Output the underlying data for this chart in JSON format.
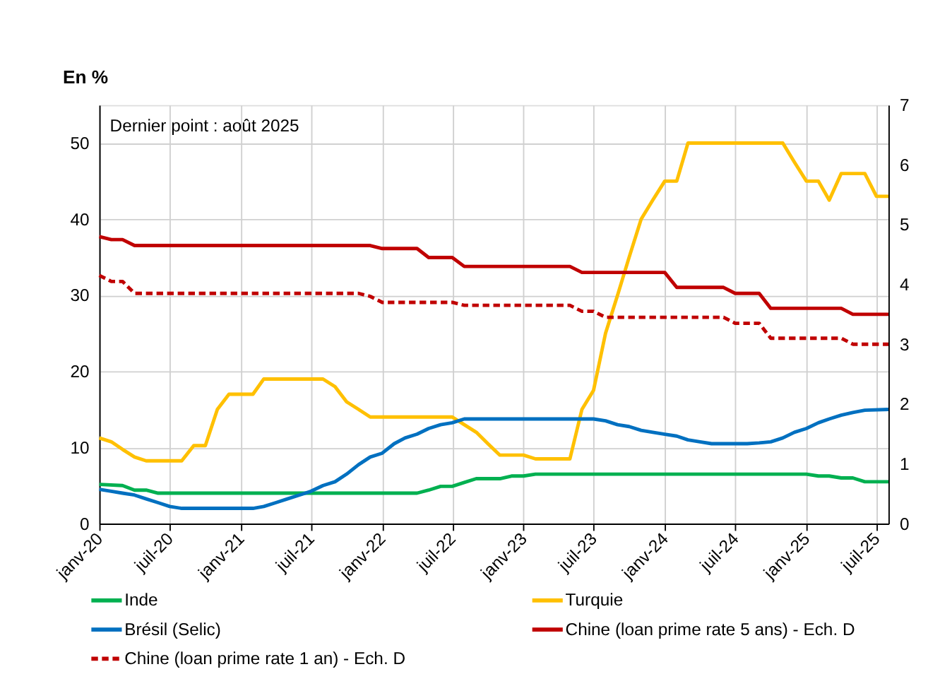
{
  "chart_data": {
    "type": "line",
    "ylabel": "En %",
    "annotations": [
      "Dernier point : août 2025"
    ],
    "xlim": [
      "2020-01",
      "2025-08"
    ],
    "xticks": [
      {
        "value": "2020-01",
        "label": "janv-20"
      },
      {
        "value": "2020-07",
        "label": "juil-20"
      },
      {
        "value": "2021-01",
        "label": "janv-21"
      },
      {
        "value": "2021-07",
        "label": "juil-21"
      },
      {
        "value": "2022-01",
        "label": "janv-22"
      },
      {
        "value": "2022-07",
        "label": "juil-22"
      },
      {
        "value": "2023-01",
        "label": "janv-23"
      },
      {
        "value": "2023-07",
        "label": "juil-23"
      },
      {
        "value": "2024-01",
        "label": "janv-24"
      },
      {
        "value": "2024-07",
        "label": "juil-24"
      },
      {
        "value": "2025-01",
        "label": "janv-25"
      },
      {
        "value": "2025-07",
        "label": "juil-25"
      }
    ],
    "ylim": [
      0,
      55
    ],
    "yticks": [
      0,
      10,
      20,
      30,
      40,
      50
    ],
    "y2lim": [
      0,
      7
    ],
    "y2ticks": [
      0,
      1,
      2,
      3,
      4,
      5,
      6,
      7
    ],
    "grid": true,
    "legend": "bottom",
    "series": [
      {
        "name": "Inde",
        "color": "#00b050",
        "x": [
          "2020-01",
          "2020-03",
          "2020-04",
          "2020-05",
          "2020-06",
          "2022-04",
          "2022-05",
          "2022-06",
          "2022-07",
          "2022-08",
          "2022-09",
          "2022-11",
          "2022-12",
          "2023-01",
          "2023-02",
          "2025-01",
          "2025-02",
          "2025-03",
          "2025-04",
          "2025-05",
          "2025-06",
          "2025-08"
        ],
        "values": [
          5.15,
          5.0,
          4.4,
          4.4,
          4.0,
          4.0,
          4.4,
          4.9,
          4.9,
          5.4,
          5.9,
          5.9,
          6.25,
          6.25,
          6.5,
          6.5,
          6.25,
          6.25,
          6.0,
          6.0,
          5.5,
          5.5
        ]
      },
      {
        "name": "Turquie",
        "color": "#ffc000",
        "x": [
          "2020-01",
          "2020-02",
          "2020-03",
          "2020-04",
          "2020-05",
          "2020-08",
          "2020-09",
          "2020-10",
          "2020-11",
          "2020-12",
          "2021-02",
          "2021-03",
          "2021-08",
          "2021-09",
          "2021-10",
          "2021-11",
          "2021-12",
          "2022-07",
          "2022-08",
          "2022-09",
          "2022-10",
          "2022-11",
          "2023-01",
          "2023-02",
          "2023-05",
          "2023-06",
          "2023-07",
          "2023-08",
          "2023-09",
          "2023-10",
          "2023-11",
          "2023-12",
          "2024-01",
          "2024-02",
          "2024-03",
          "2024-11",
          "2024-12",
          "2025-01",
          "2025-02",
          "2025-03",
          "2025-04",
          "2025-06",
          "2025-07",
          "2025-08"
        ],
        "values": [
          11.25,
          10.75,
          9.75,
          8.75,
          8.25,
          8.25,
          10.25,
          10.25,
          15,
          17,
          17,
          19,
          19,
          18,
          16,
          15,
          14,
          14,
          13,
          12,
          10.5,
          9,
          9,
          8.5,
          8.5,
          15,
          17.5,
          25,
          30,
          35,
          40,
          42.5,
          45,
          45,
          50,
          50,
          47.5,
          45,
          45,
          42.5,
          46,
          46,
          43,
          43
        ]
      },
      {
        "name": "Brésil (Selic)",
        "color": "#0070c0",
        "x": [
          "2020-01",
          "2020-02",
          "2020-03",
          "2020-04",
          "2020-05",
          "2020-06",
          "2020-07",
          "2020-08",
          "2021-02",
          "2021-03",
          "2021-04",
          "2021-05",
          "2021-06",
          "2021-07",
          "2021-08",
          "2021-09",
          "2021-10",
          "2021-11",
          "2021-12",
          "2022-01",
          "2022-02",
          "2022-03",
          "2022-04",
          "2022-05",
          "2022-06",
          "2022-07",
          "2022-08",
          "2023-07",
          "2023-08",
          "2023-09",
          "2023-10",
          "2023-11",
          "2023-12",
          "2024-01",
          "2024-02",
          "2024-03",
          "2024-04",
          "2024-05",
          "2024-08",
          "2024-09",
          "2024-10",
          "2024-11",
          "2024-12",
          "2025-01",
          "2025-02",
          "2025-03",
          "2025-04",
          "2025-05",
          "2025-06",
          "2025-08"
        ],
        "values": [
          4.5,
          4.25,
          4.0,
          3.75,
          3.25,
          2.75,
          2.25,
          2.0,
          2.0,
          2.25,
          2.75,
          3.25,
          3.75,
          4.25,
          5.0,
          5.5,
          6.5,
          7.75,
          8.75,
          9.25,
          10.5,
          11.25,
          11.75,
          12.5,
          13.0,
          13.25,
          13.75,
          13.75,
          13.5,
          13.0,
          12.75,
          12.25,
          12.0,
          11.75,
          11.5,
          11.0,
          10.75,
          10.5,
          10.5,
          10.6,
          10.75,
          11.25,
          12.0,
          12.5,
          13.25,
          13.75,
          14.25,
          14.6,
          14.9,
          15.0
        ]
      },
      {
        "name": "Chine (loan prime rate 5 ans) - Ech. D",
        "color": "#c00000",
        "axis": "y2",
        "line_style": "solid",
        "x": [
          "2020-01",
          "2020-02",
          "2020-03",
          "2020-04",
          "2021-12",
          "2022-01",
          "2022-04",
          "2022-05",
          "2022-07",
          "2022-08",
          "2023-05",
          "2023-06",
          "2024-01",
          "2024-02",
          "2024-06",
          "2024-07",
          "2024-09",
          "2024-10",
          "2025-04",
          "2025-05",
          "2025-08"
        ],
        "values": [
          4.8,
          4.75,
          4.75,
          4.65,
          4.65,
          4.6,
          4.6,
          4.45,
          4.45,
          4.3,
          4.3,
          4.2,
          4.2,
          3.95,
          3.95,
          3.85,
          3.85,
          3.6,
          3.6,
          3.5,
          3.5
        ]
      },
      {
        "name": "Chine (loan prime rate 1 an) - Ech. D",
        "color": "#c00000",
        "axis": "y2",
        "line_style": "dashed",
        "x": [
          "2020-01",
          "2020-02",
          "2020-03",
          "2020-04",
          "2021-11",
          "2021-12",
          "2022-01",
          "2022-07",
          "2022-08",
          "2023-05",
          "2023-06",
          "2023-07",
          "2023-08",
          "2024-06",
          "2024-07",
          "2024-09",
          "2024-10",
          "2025-04",
          "2025-05",
          "2025-08"
        ],
        "values": [
          4.15,
          4.05,
          4.05,
          3.85,
          3.85,
          3.8,
          3.7,
          3.7,
          3.65,
          3.65,
          3.55,
          3.55,
          3.45,
          3.45,
          3.35,
          3.35,
          3.1,
          3.1,
          3.0,
          3.0
        ]
      }
    ]
  }
}
